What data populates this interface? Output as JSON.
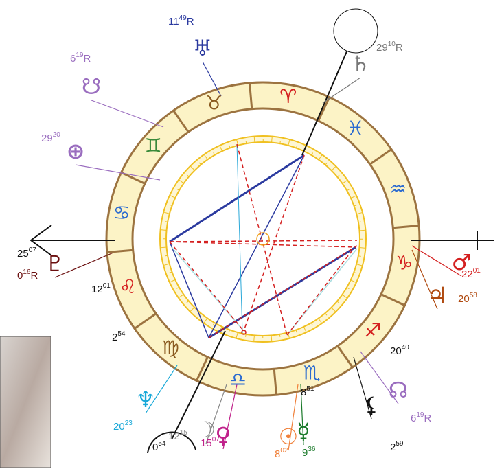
{
  "signs": [
    "♈",
    "♉",
    "♊",
    "♋",
    "♌",
    "♍",
    "♎",
    "♏",
    "♐",
    "♑",
    "♒",
    "♓"
  ],
  "points": [
    {
      "glyph": "♅",
      "degree": "11",
      "minute": "49",
      "retrograde": "R"
    },
    {
      "glyph": "♄",
      "degree": "29",
      "minute": "10",
      "retrograde": "R"
    },
    {
      "glyph": "☋",
      "degree": "6",
      "minute": "19",
      "retrograde": "R"
    },
    {
      "glyph": "⊕",
      "degree": "29",
      "minute": "20"
    },
    {
      "glyph": "♇",
      "degree": "0",
      "minute": "16",
      "retrograde": "R"
    },
    {
      "glyph": "♂",
      "degree": "22",
      "minute": "01"
    },
    {
      "glyph": "♃",
      "degree": "20",
      "minute": "58"
    },
    {
      "glyph": "☊",
      "degree": "6",
      "minute": "19",
      "retrograde": "R"
    },
    {
      "glyph": "⚸",
      "degree": "2",
      "minute": "59"
    },
    {
      "glyph": "♆",
      "degree": "20",
      "minute": "23"
    },
    {
      "glyph": "☽",
      "degree": "12",
      "minute": "15"
    },
    {
      "glyph": "♀",
      "degree": "15",
      "minute": "07"
    },
    {
      "glyph": "☉",
      "degree": "8",
      "minute": "02"
    },
    {
      "glyph": "☿",
      "degree": "9",
      "minute": "36"
    }
  ],
  "cusps": [
    {
      "degree": "25",
      "minute": "07"
    },
    {
      "degree": "12",
      "minute": "01"
    },
    {
      "degree": "2",
      "minute": "54"
    },
    {
      "degree": "0",
      "minute": "54"
    },
    {
      "degree": "8",
      "minute": "51"
    },
    {
      "degree": "20",
      "minute": "40"
    }
  ]
}
